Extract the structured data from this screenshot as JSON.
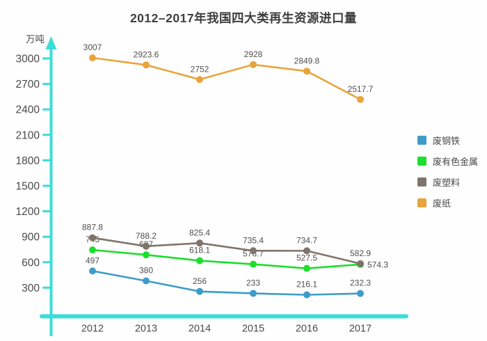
{
  "title": "2012–2017年我国四大类再生资源进口量",
  "chart_data": {
    "type": "line",
    "title": "2012–2017年我国四大类再生资源进口量",
    "unit_label": "万吨",
    "xlabel": "",
    "ylabel": "万吨",
    "categories": [
      "2012",
      "2013",
      "2014",
      "2015",
      "2016",
      "2017"
    ],
    "yticks": [
      300,
      600,
      900,
      1200,
      1500,
      1800,
      2100,
      2400,
      2700,
      3000
    ],
    "ylim": [
      0,
      3100
    ],
    "grid": false,
    "legend_position": "right",
    "axis_color": "#3adcd8",
    "text_color": "#4a4a4a",
    "series": [
      {
        "name": "废钢铁",
        "color": "#3e9cc9",
        "values": [
          497,
          380,
          256,
          233,
          216.1,
          232.3
        ]
      },
      {
        "name": "废有色金属",
        "color": "#1cde2d",
        "values": [
          745,
          687,
          618.1,
          576.7,
          527.5,
          574.3
        ]
      },
      {
        "name": "废塑料",
        "color": "#80746a",
        "values": [
          887.8,
          788.2,
          825.4,
          735.4,
          734.7,
          582.9
        ]
      },
      {
        "name": "废纸",
        "color": "#e9a43b",
        "values": [
          3007,
          2923.6,
          2752,
          2928,
          2849.8,
          2517.7
        ]
      }
    ]
  }
}
